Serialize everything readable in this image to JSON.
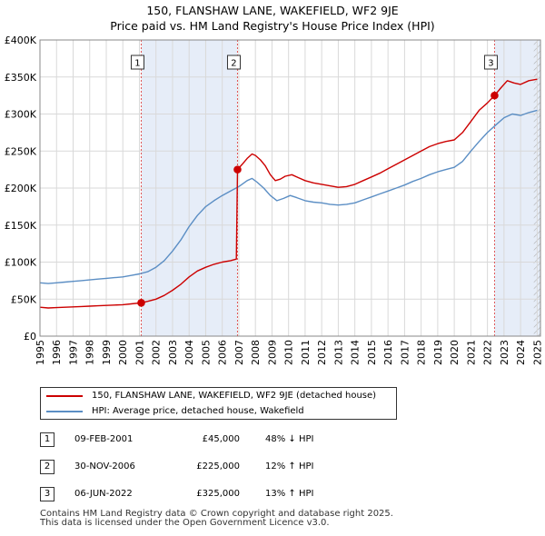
{
  "title": {
    "line1": "150, FLANSHAW LANE, WAKEFIELD, WF2 9JE",
    "line2": "Price paid vs. HM Land Registry's House Price Index (HPI)"
  },
  "chart_data": {
    "type": "line",
    "xlim": [
      1995,
      2025.2
    ],
    "ylim": [
      0,
      400000
    ],
    "y_ticks": [
      0,
      50000,
      100000,
      150000,
      200000,
      250000,
      300000,
      350000,
      400000
    ],
    "y_tick_labels": [
      "£0",
      "£50K",
      "£100K",
      "£150K",
      "£200K",
      "£250K",
      "£300K",
      "£350K",
      "£400K"
    ],
    "x_ticks": [
      1995,
      1996,
      1997,
      1998,
      1999,
      2000,
      2001,
      2002,
      2003,
      2004,
      2005,
      2006,
      2007,
      2008,
      2009,
      2010,
      2011,
      2012,
      2013,
      2014,
      2015,
      2016,
      2017,
      2018,
      2019,
      2020,
      2021,
      2022,
      2023,
      2024,
      2025
    ],
    "x_tick_labels": [
      "1995",
      "1996",
      "1997",
      "1998",
      "1999",
      "2000",
      "2001",
      "2002",
      "2003",
      "2004",
      "2005",
      "2006",
      "2007",
      "2008",
      "2009",
      "2010",
      "2011",
      "2012",
      "2013",
      "2014",
      "2015",
      "2016",
      "2017",
      "2018",
      "2019",
      "2020",
      "2021",
      "2022",
      "2023",
      "2024",
      "2025"
    ],
    "shaded_spans": [
      [
        2001.11,
        2006.92
      ],
      [
        2022.43,
        2025.2
      ]
    ],
    "hatch_start": 2024.8,
    "series": [
      {
        "name": "150, FLANSHAW LANE, WAKEFIELD, WF2 9JE (detached house)",
        "color": "#cc0000",
        "points": [
          [
            1995.0,
            39000
          ],
          [
            1995.5,
            38000
          ],
          [
            1996.0,
            38500
          ],
          [
            1996.5,
            39000
          ],
          [
            1997.0,
            39500
          ],
          [
            1997.5,
            40000
          ],
          [
            1998.0,
            40500
          ],
          [
            1998.5,
            41000
          ],
          [
            1999.0,
            41500
          ],
          [
            1999.5,
            42000
          ],
          [
            2000.0,
            42500
          ],
          [
            2000.5,
            43500
          ],
          [
            2001.11,
            45000
          ],
          [
            2001.5,
            47000
          ],
          [
            2002.0,
            50000
          ],
          [
            2002.5,
            55000
          ],
          [
            2003.0,
            62000
          ],
          [
            2003.5,
            70000
          ],
          [
            2004.0,
            80000
          ],
          [
            2004.5,
            88000
          ],
          [
            2005.0,
            93000
          ],
          [
            2005.5,
            97000
          ],
          [
            2006.0,
            100000
          ],
          [
            2006.5,
            102000
          ],
          [
            2006.85,
            104000
          ],
          [
            2006.92,
            225000
          ],
          [
            2007.2,
            232000
          ],
          [
            2007.5,
            240000
          ],
          [
            2007.8,
            246000
          ],
          [
            2008.0,
            244000
          ],
          [
            2008.3,
            238000
          ],
          [
            2008.6,
            230000
          ],
          [
            2008.9,
            218000
          ],
          [
            2009.2,
            210000
          ],
          [
            2009.5,
            212000
          ],
          [
            2009.8,
            216000
          ],
          [
            2010.2,
            218000
          ],
          [
            2010.6,
            214000
          ],
          [
            2011.0,
            210000
          ],
          [
            2011.5,
            207000
          ],
          [
            2012.0,
            205000
          ],
          [
            2012.5,
            203000
          ],
          [
            2013.0,
            201000
          ],
          [
            2013.5,
            202000
          ],
          [
            2014.0,
            205000
          ],
          [
            2014.5,
            210000
          ],
          [
            2015.0,
            215000
          ],
          [
            2015.5,
            220000
          ],
          [
            2016.0,
            226000
          ],
          [
            2016.5,
            232000
          ],
          [
            2017.0,
            238000
          ],
          [
            2017.5,
            244000
          ],
          [
            2018.0,
            250000
          ],
          [
            2018.5,
            256000
          ],
          [
            2019.0,
            260000
          ],
          [
            2019.5,
            263000
          ],
          [
            2020.0,
            265000
          ],
          [
            2020.5,
            275000
          ],
          [
            2021.0,
            290000
          ],
          [
            2021.5,
            305000
          ],
          [
            2022.0,
            315000
          ],
          [
            2022.43,
            325000
          ],
          [
            2022.8,
            335000
          ],
          [
            2023.2,
            345000
          ],
          [
            2023.6,
            342000
          ],
          [
            2024.0,
            340000
          ],
          [
            2024.5,
            345000
          ],
          [
            2025.0,
            347000
          ]
        ]
      },
      {
        "name": "HPI: Average price, detached house, Wakefield",
        "color": "#5b8ec4",
        "points": [
          [
            1995.0,
            72000
          ],
          [
            1995.5,
            71000
          ],
          [
            1996.0,
            72000
          ],
          [
            1996.5,
            73000
          ],
          [
            1997.0,
            74000
          ],
          [
            1997.5,
            75000
          ],
          [
            1998.0,
            76000
          ],
          [
            1998.5,
            77000
          ],
          [
            1999.0,
            78000
          ],
          [
            1999.5,
            79000
          ],
          [
            2000.0,
            80000
          ],
          [
            2000.5,
            82000
          ],
          [
            2001.0,
            84000
          ],
          [
            2001.5,
            87000
          ],
          [
            2002.0,
            93000
          ],
          [
            2002.5,
            102000
          ],
          [
            2003.0,
            115000
          ],
          [
            2003.5,
            130000
          ],
          [
            2004.0,
            148000
          ],
          [
            2004.5,
            163000
          ],
          [
            2005.0,
            175000
          ],
          [
            2005.5,
            183000
          ],
          [
            2006.0,
            190000
          ],
          [
            2006.5,
            196000
          ],
          [
            2007.0,
            202000
          ],
          [
            2007.5,
            210000
          ],
          [
            2007.8,
            213000
          ],
          [
            2008.1,
            208000
          ],
          [
            2008.5,
            200000
          ],
          [
            2008.9,
            190000
          ],
          [
            2009.3,
            183000
          ],
          [
            2009.7,
            186000
          ],
          [
            2010.1,
            190000
          ],
          [
            2010.5,
            187000
          ],
          [
            2011.0,
            183000
          ],
          [
            2011.5,
            181000
          ],
          [
            2012.0,
            180000
          ],
          [
            2012.5,
            178000
          ],
          [
            2013.0,
            177000
          ],
          [
            2013.5,
            178000
          ],
          [
            2014.0,
            180000
          ],
          [
            2014.5,
            184000
          ],
          [
            2015.0,
            188000
          ],
          [
            2015.5,
            192000
          ],
          [
            2016.0,
            196000
          ],
          [
            2016.5,
            200000
          ],
          [
            2017.0,
            204000
          ],
          [
            2017.5,
            209000
          ],
          [
            2018.0,
            213000
          ],
          [
            2018.5,
            218000
          ],
          [
            2019.0,
            222000
          ],
          [
            2019.5,
            225000
          ],
          [
            2020.0,
            228000
          ],
          [
            2020.5,
            236000
          ],
          [
            2021.0,
            250000
          ],
          [
            2021.5,
            263000
          ],
          [
            2022.0,
            275000
          ],
          [
            2022.5,
            285000
          ],
          [
            2023.0,
            295000
          ],
          [
            2023.5,
            300000
          ],
          [
            2024.0,
            298000
          ],
          [
            2024.5,
            302000
          ],
          [
            2025.0,
            305000
          ]
        ]
      }
    ],
    "sales": [
      {
        "label": "1",
        "x": 2001.11,
        "y": 45000
      },
      {
        "label": "2",
        "x": 2006.92,
        "y": 225000
      },
      {
        "label": "3",
        "x": 2022.43,
        "y": 325000
      }
    ]
  },
  "table": [
    {
      "num": "1",
      "date": "09-FEB-2001",
      "price": "£45,000",
      "hpi": "48% ↓ HPI"
    },
    {
      "num": "2",
      "date": "30-NOV-2006",
      "price": "£225,000",
      "hpi": "12% ↑ HPI"
    },
    {
      "num": "3",
      "date": "06-JUN-2022",
      "price": "£325,000",
      "hpi": "13% ↑ HPI"
    }
  ],
  "footer": {
    "line1": "Contains HM Land Registry data © Crown copyright and database right 2025.",
    "line2": "This data is licensed under the Open Government Licence v3.0."
  }
}
